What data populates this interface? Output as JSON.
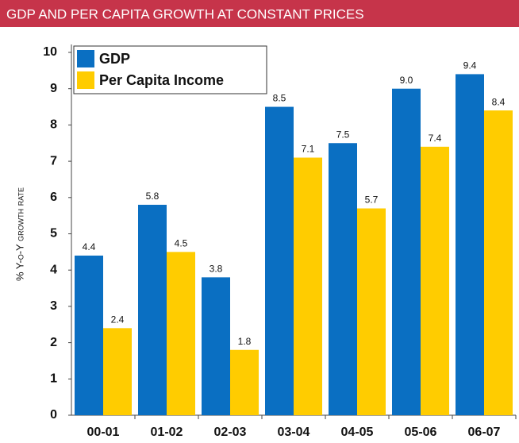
{
  "chart_data": {
    "type": "bar",
    "title": "GDP AND PER CAPITA GROWTH AT CONSTANT PRICES",
    "y_label": "% Y-o-Y growth rate",
    "categories": [
      "00-01",
      "01-02",
      "02-03",
      "03-04",
      "04-05",
      "05-06",
      "06-07"
    ],
    "series": [
      {
        "name": "GDP",
        "color": "#0a6fc2",
        "values": [
          4.4,
          5.8,
          3.8,
          8.5,
          7.5,
          9,
          9.4
        ],
        "value_labels": [
          "4.4",
          "5.8",
          "3.8",
          "8.5",
          "7.5",
          "9.0",
          "9.4"
        ]
      },
      {
        "name": "Per Capita Income",
        "color": "#ffcc00",
        "values": [
          2.4,
          4.5,
          1.8,
          7.1,
          5.7,
          7.4,
          8.4
        ],
        "value_labels": [
          "2.4",
          "4.5",
          "1.8",
          "7.1",
          "5.7",
          "7.4",
          "8.4"
        ]
      }
    ],
    "ylim": [
      0,
      10
    ],
    "yticks": [
      0,
      1,
      2,
      3,
      4,
      5,
      6,
      7,
      8,
      9,
      10
    ],
    "legend": "top-left",
    "grid": false
  }
}
